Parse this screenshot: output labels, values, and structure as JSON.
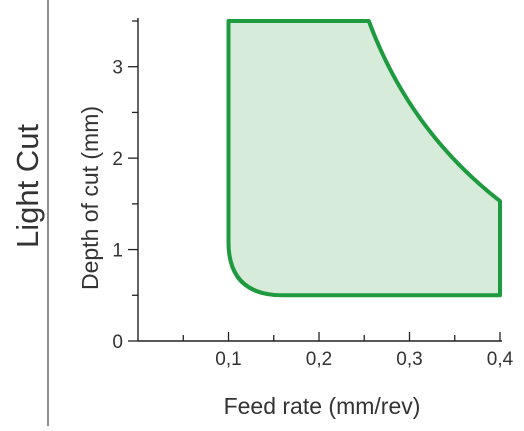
{
  "side_title": "Light Cut",
  "chart_data": {
    "type": "area",
    "xlabel": "Feed rate (mm/rev)",
    "ylabel": "Depth of cut (mm)",
    "xlim": [
      0,
      0.4
    ],
    "ylim": [
      0,
      3.5
    ],
    "x_ticks": [
      {
        "value": 0.1,
        "label": "0,1"
      },
      {
        "value": 0.2,
        "label": "0,2"
      },
      {
        "value": 0.3,
        "label": "0,3"
      },
      {
        "value": 0.4,
        "label": "0,4"
      }
    ],
    "x_minor_ticks": [
      0.05,
      0.15,
      0.25,
      0.35
    ],
    "y_ticks": [
      {
        "value": 0,
        "label": "0"
      },
      {
        "value": 1,
        "label": "1"
      },
      {
        "value": 2,
        "label": "2"
      },
      {
        "value": 3,
        "label": "3"
      }
    ],
    "y_minor_ticks": [
      0.5,
      1.5,
      2.5,
      3.5
    ],
    "region": {
      "vertices": [
        {
          "x": 0.1,
          "y": 3.5
        },
        {
          "x": 0.255,
          "y": 3.5
        },
        {
          "x": 0.4,
          "y": 1.53
        },
        {
          "x": 0.4,
          "y": 0.5
        },
        {
          "x": 0.16,
          "y": 0.5
        },
        {
          "x": 0.1,
          "y": 1.08
        }
      ],
      "curved_edge_control": {
        "x": 0.3,
        "y": 2.3
      },
      "rounded_corner_control": {
        "x": 0.1,
        "y": 0.5
      },
      "fill_color": "#d6ebd9",
      "stroke_color": "#1e9a3f"
    },
    "grid": false
  }
}
